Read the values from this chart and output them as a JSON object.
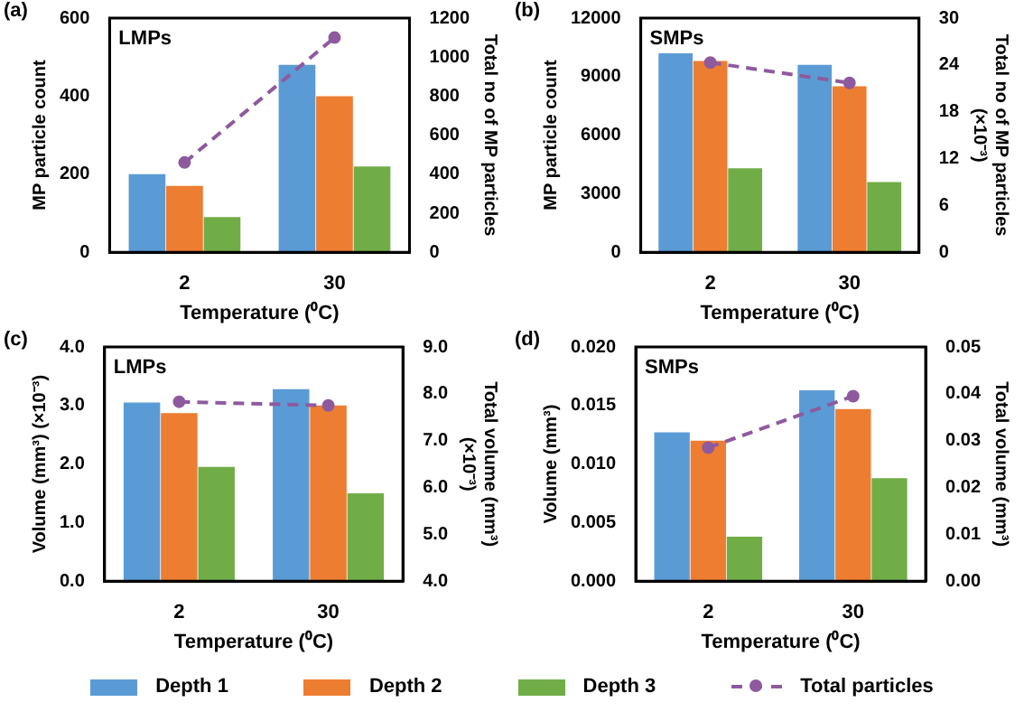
{
  "chart_data": [
    {
      "type": "bar",
      "title": "(a)",
      "annotations": [
        "LMPs"
      ],
      "xlabel": "Temperature (⁰C)",
      "ylabel": "MP particle count",
      "y2label": "Total no of MP particles",
      "categories": [
        "2",
        "30"
      ],
      "ylim": [
        0,
        600
      ],
      "yticks": [
        0,
        200,
        400,
        600
      ],
      "y2lim": [
        0,
        1200
      ],
      "y2ticks": [
        0,
        200,
        400,
        600,
        800,
        1000,
        1200
      ],
      "legend": "bottom",
      "series": [
        {
          "name": "Depth 1",
          "color": "#5b9bd5",
          "values": [
            200,
            480
          ]
        },
        {
          "name": "Depth 2",
          "color": "#ed7d31",
          "values": [
            170,
            400
          ]
        },
        {
          "name": "Depth 3",
          "color": "#70ad47",
          "values": [
            90,
            220
          ]
        },
        {
          "name": "Total particles",
          "type": "line",
          "axis": "y2",
          "color": "#8e5a9e",
          "line_style": "dashed",
          "marker": "circle",
          "values": [
            460,
            1100
          ]
        }
      ]
    },
    {
      "type": "bar",
      "title": "(b)",
      "annotations": [
        "SMPs"
      ],
      "xlabel": "Temperature (⁰C)",
      "ylabel": "MP particle count",
      "y2label": "Total no of MP particles (×10⁻³)",
      "categories": [
        "2",
        "30"
      ],
      "ylim": [
        0,
        12000
      ],
      "yticks": [
        0,
        3000,
        6000,
        9000,
        12000
      ],
      "y2lim": [
        0,
        30
      ],
      "y2ticks": [
        0,
        6,
        12,
        18,
        24,
        30
      ],
      "series": [
        {
          "color": "#5b9bd5",
          "values": [
            10200,
            9600
          ]
        },
        {
          "color": "#ed7d31",
          "values": [
            9800,
            8500
          ]
        },
        {
          "color": "#70ad47",
          "values": [
            4300,
            3600
          ]
        },
        {
          "type": "line",
          "axis": "y2",
          "color": "#8e5a9e",
          "line_style": "dashed",
          "marker": "circle",
          "values": [
            24.3,
            21.7
          ]
        }
      ]
    },
    {
      "type": "bar",
      "title": "(c)",
      "annotations": [
        "LMPs"
      ],
      "xlabel": "Temperature (⁰C)",
      "ylabel": "Volume (mm³) (×10⁻³)",
      "y2label": "Total volume (mm³) (×10⁻³)",
      "categories": [
        "2",
        "30"
      ],
      "ylim": [
        0,
        4
      ],
      "yticks": [
        {
          "value": 0,
          "label": "0.0"
        },
        {
          "value": 1,
          "label": "1.0"
        },
        {
          "value": 2,
          "label": "2.0"
        },
        {
          "value": 3,
          "label": "3.0"
        },
        {
          "value": 4,
          "label": "4.0"
        }
      ],
      "y2lim": [
        4,
        9
      ],
      "y2ticks": [
        {
          "value": 4,
          "label": "4.0"
        },
        {
          "value": 5,
          "label": "5.0"
        },
        {
          "value": 6,
          "label": "6.0"
        },
        {
          "value": 7,
          "label": "7.0"
        },
        {
          "value": 8,
          "label": "8.0"
        },
        {
          "value": 9,
          "label": "9.0"
        }
      ],
      "series": [
        {
          "color": "#5b9bd5",
          "values": [
            3.05,
            3.28
          ]
        },
        {
          "color": "#ed7d31",
          "values": [
            2.87,
            3.0
          ]
        },
        {
          "color": "#70ad47",
          "values": [
            1.95,
            1.5
          ]
        },
        {
          "type": "line",
          "axis": "y2",
          "color": "#8e5a9e",
          "line_style": "dashed",
          "marker": "circle",
          "values": [
            7.83,
            7.75
          ]
        }
      ]
    },
    {
      "type": "bar",
      "title": "(d)",
      "annotations": [
        "SMPs"
      ],
      "xlabel": "Temperature (⁰C)",
      "ylabel": "Volume (mm³)",
      "y2label": "Total volume (mm³)",
      "categories": [
        "2",
        "30"
      ],
      "ylim": [
        0,
        0.02
      ],
      "yticks": [
        {
          "value": 0,
          "label": "0.000"
        },
        {
          "value": 0.005,
          "label": "0.005"
        },
        {
          "value": 0.01,
          "label": "0.010"
        },
        {
          "value": 0.015,
          "label": "0.015"
        },
        {
          "value": 0.02,
          "label": "0.020"
        }
      ],
      "y2lim": [
        0,
        0.05
      ],
      "y2ticks": [
        {
          "value": 0,
          "label": "0.00"
        },
        {
          "value": 0.01,
          "label": "0.01"
        },
        {
          "value": 0.02,
          "label": "0.02"
        },
        {
          "value": 0.03,
          "label": "0.03"
        },
        {
          "value": 0.04,
          "label": "0.04"
        },
        {
          "value": 0.05,
          "label": "0.05"
        }
      ],
      "series": [
        {
          "color": "#5b9bd5",
          "values": [
            0.0127,
            0.0163
          ]
        },
        {
          "color": "#ed7d31",
          "values": [
            0.012,
            0.0147
          ]
        },
        {
          "color": "#70ad47",
          "values": [
            0.0038,
            0.0088
          ]
        },
        {
          "type": "line",
          "axis": "y2",
          "color": "#8e5a9e",
          "line_style": "dashed",
          "marker": "circle",
          "values": [
            0.0285,
            0.0395
          ]
        }
      ]
    }
  ]
}
